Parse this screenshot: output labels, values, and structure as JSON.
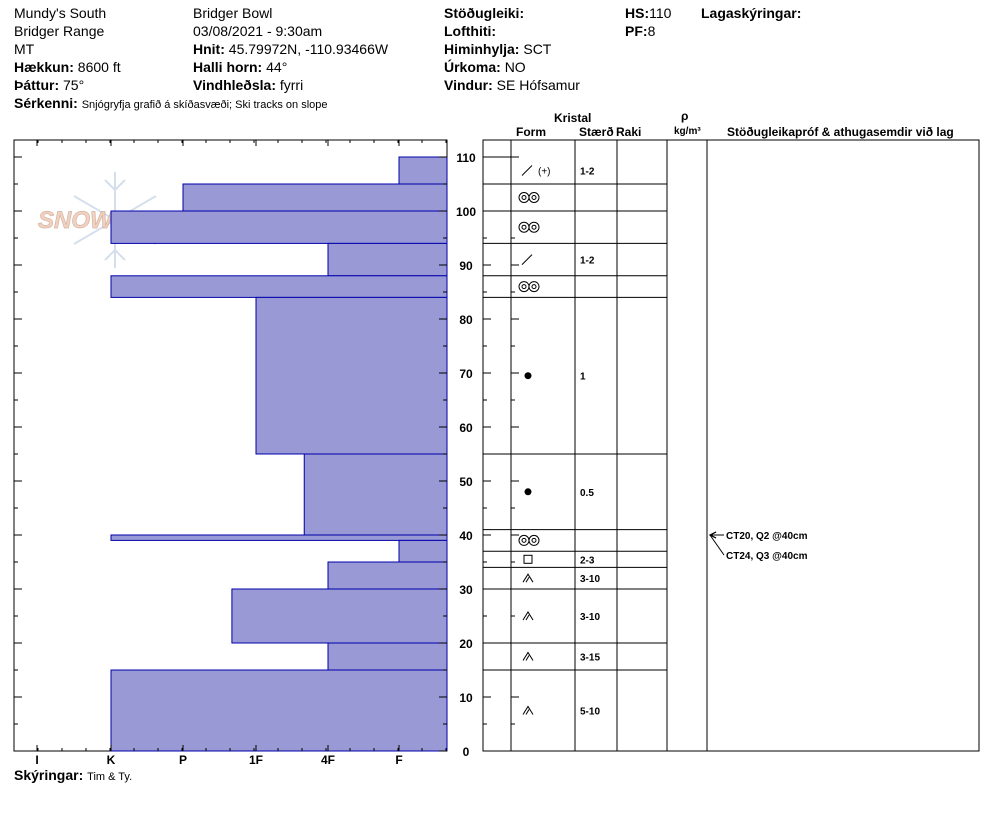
{
  "header": {
    "location": "Mundy's South",
    "range": "Bridger Range",
    "state": "MT",
    "elevation_label": "Hækkun:",
    "elevation_value": "8600 ft",
    "aspect_label": "Þáttur:",
    "aspect_value": "75°",
    "features_label": "Sérkenni:",
    "features_value": "Snjógryfja grafið á skíðasvæði; Ski tracks on slope",
    "area": "Bridger Bowl",
    "datetime": "03/08/2021 - 9:30am",
    "coords_label": "Hnit:",
    "coords_value": "45.79972N, -110.93466W",
    "slope_label": "Halli horn:",
    "slope_value": "44°",
    "wind_loading_label": "Vindhleðsla:",
    "wind_loading_value": "fyrri",
    "stability_label": "Stöðugleiki:",
    "air_temp_label": "Lofthiti:",
    "sky_label": "Himinhylja:",
    "sky_value": "SCT",
    "precip_label": "Úrkoma:",
    "precip_value": "NO",
    "wind_label": "Vindur:",
    "wind_value": "SE Hófsamur",
    "hs_label": "HS:",
    "hs_value": "110",
    "pf_label": "PF:",
    "pf_value": "8",
    "legend_label": "Lagaskýringar:"
  },
  "columns": {
    "crystal": "Kristal",
    "form": "Form",
    "size": "Stærð",
    "moisture": "Raki",
    "rho": "ρ",
    "density_unit": "kg/m³",
    "comments": "Stöðugleikapróf & athugasemdir við lag"
  },
  "footer": {
    "observers_label": "Skýringar:",
    "observers_value": "Tim & Ty."
  },
  "watermark": {
    "text": "SNOWPILOT",
    "icon": "snowflake-icon"
  },
  "colors": {
    "hardness_fill": "#9999d6",
    "hardness_stroke": "#0000aa"
  },
  "chart_data": {
    "type": "bar",
    "orientation": "horizontal",
    "title": "",
    "ylabel": "",
    "ylim": [
      0,
      110
    ],
    "y_ticks": [
      0,
      10,
      20,
      30,
      40,
      50,
      60,
      70,
      80,
      90,
      100,
      110
    ],
    "hardness_categories": [
      "I",
      "K",
      "P",
      "1F",
      "4F",
      "F"
    ],
    "layers": [
      {
        "bottom": 105,
        "top": 110,
        "hardness": "F"
      },
      {
        "bottom": 100,
        "top": 105,
        "hardness": "P"
      },
      {
        "bottom": 94,
        "top": 100,
        "hardness": "K"
      },
      {
        "bottom": 88,
        "top": 94,
        "hardness": "4F"
      },
      {
        "bottom": 84,
        "top": 88,
        "hardness": "K"
      },
      {
        "bottom": 55,
        "top": 84,
        "hardness": "1F"
      },
      {
        "bottom": 40,
        "top": 55,
        "hardness": "1F+"
      },
      {
        "bottom": 39,
        "top": 40,
        "hardness": "K"
      },
      {
        "bottom": 35,
        "top": 39,
        "hardness": "F"
      },
      {
        "bottom": 30,
        "top": 35,
        "hardness": "4F"
      },
      {
        "bottom": 20,
        "top": 30,
        "hardness": "P+"
      },
      {
        "bottom": 15,
        "top": 20,
        "hardness": "4F"
      },
      {
        "bottom": 0,
        "top": 15,
        "hardness": "K"
      }
    ],
    "grain_layers": [
      {
        "bottom": 105,
        "top": 110,
        "form": "decomposing-fragments",
        "size": "1-2"
      },
      {
        "bottom": 100,
        "top": 105,
        "form": "melt-forms",
        "size": ""
      },
      {
        "bottom": 94,
        "top": 100,
        "form": "melt-forms",
        "size": ""
      },
      {
        "bottom": 88,
        "top": 94,
        "form": "decomposing-fragments",
        "size": "1-2"
      },
      {
        "bottom": 84,
        "top": 88,
        "form": "melt-forms",
        "size": ""
      },
      {
        "bottom": 55,
        "top": 84,
        "form": "rounded-grains",
        "size": "1"
      },
      {
        "bottom": 41,
        "top": 55,
        "form": "rounded-grains",
        "size": "0.5"
      },
      {
        "bottom": 37,
        "top": 41,
        "form": "melt-forms",
        "size": ""
      },
      {
        "bottom": 34,
        "top": 37,
        "form": "faceted-crystals",
        "size": "2-3"
      },
      {
        "bottom": 30,
        "top": 34,
        "form": "depth-hoar",
        "size": "3-10"
      },
      {
        "bottom": 20,
        "top": 30,
        "form": "depth-hoar",
        "size": "3-10"
      },
      {
        "bottom": 15,
        "top": 20,
        "form": "depth-hoar",
        "size": "3-15"
      },
      {
        "bottom": 0,
        "top": 15,
        "form": "depth-hoar",
        "size": "5-10"
      }
    ],
    "stability_tests": [
      {
        "depth": 40,
        "text": "CT20, Q2 @40cm"
      },
      {
        "depth": 40,
        "text": "CT24, Q3 @40cm"
      }
    ]
  }
}
